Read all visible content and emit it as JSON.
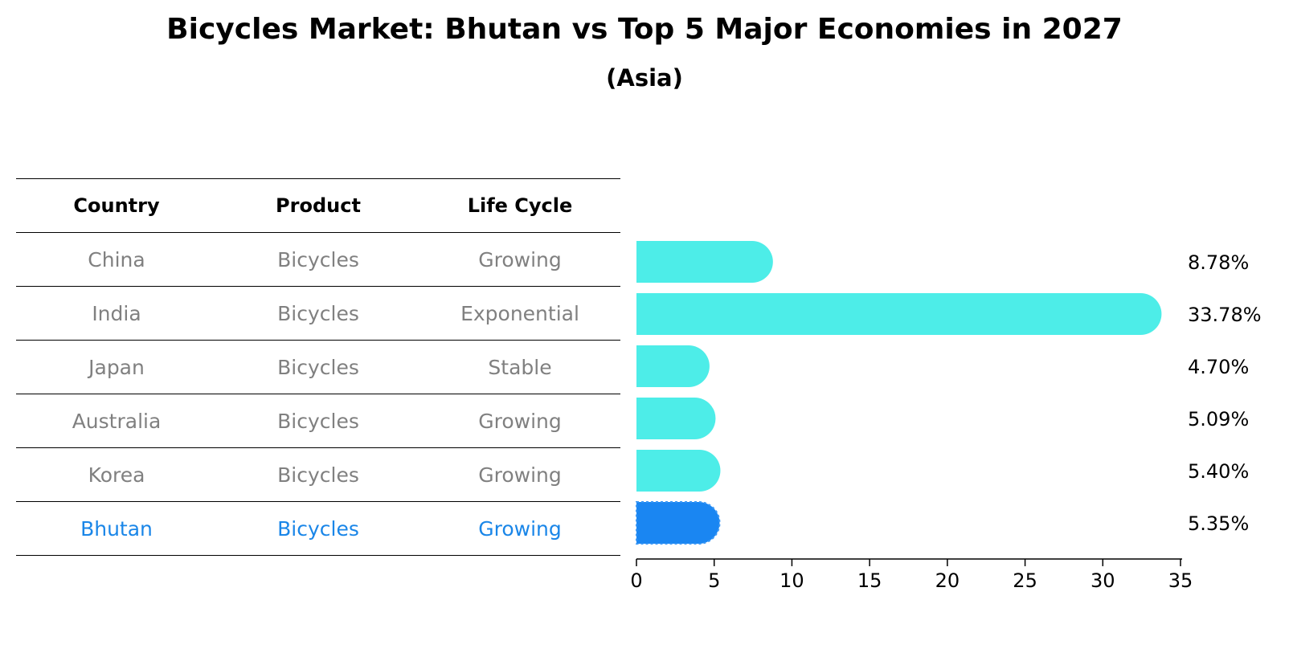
{
  "title": "Bicycles Market: Bhutan vs Top 5 Major Economies in 2027",
  "subtitle": "(Asia)",
  "table": {
    "headers": [
      "Country",
      "Product",
      "Life Cycle"
    ],
    "rows": [
      [
        "China",
        "Bicycles",
        "Growing"
      ],
      [
        "India",
        "Bicycles",
        "Exponential"
      ],
      [
        "Japan",
        "Bicycles",
        "Stable"
      ],
      [
        "Australia",
        "Bicycles",
        "Growing"
      ],
      [
        "Korea",
        "Bicycles",
        "Growing"
      ],
      [
        "Bhutan",
        "Bicycles",
        "Growing"
      ]
    ]
  },
  "chart_data": {
    "type": "bar",
    "orientation": "horizontal",
    "categories": [
      "China",
      "India",
      "Japan",
      "Australia",
      "Korea",
      "Bhutan"
    ],
    "values": [
      8.78,
      33.78,
      4.7,
      5.09,
      5.4,
      5.35
    ],
    "value_labels": [
      "8.78%",
      "33.78%",
      "4.70%",
      "5.09%",
      "5.40%",
      "5.35%"
    ],
    "highlight": "Bhutan",
    "xlim": [
      0,
      35
    ],
    "xticks": [
      0,
      5,
      10,
      15,
      20,
      25,
      30,
      35
    ],
    "colors": {
      "bar": "#4dede8",
      "highlight": "#1a86f2"
    },
    "grid": false
  }
}
